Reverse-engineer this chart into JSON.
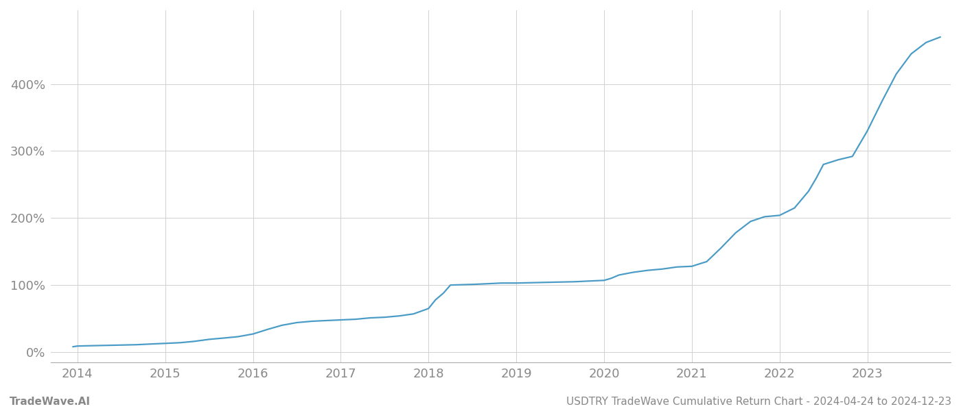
{
  "title": "USDTRY TradeWave Cumulative Return Chart - 2024-04-24 to 2024-12-23",
  "watermark": "TradeWave.AI",
  "line_color": "#4a9cc7",
  "background_color": "#ffffff",
  "grid_color": "#d0d0d0",
  "x_years": [
    2014,
    2015,
    2016,
    2017,
    2018,
    2019,
    2020,
    2021,
    2022,
    2023
  ],
  "x_data": [
    2013.95,
    2014.0,
    2014.15,
    2014.33,
    2014.5,
    2014.67,
    2014.83,
    2015.0,
    2015.17,
    2015.33,
    2015.5,
    2015.67,
    2015.83,
    2016.0,
    2016.17,
    2016.33,
    2016.5,
    2016.67,
    2016.83,
    2017.0,
    2017.17,
    2017.33,
    2017.5,
    2017.67,
    2017.83,
    2018.0,
    2018.08,
    2018.17,
    2018.25,
    2018.5,
    2018.67,
    2018.83,
    2019.0,
    2019.17,
    2019.33,
    2019.5,
    2019.67,
    2019.83,
    2020.0,
    2020.08,
    2020.17,
    2020.33,
    2020.5,
    2020.67,
    2020.83,
    2021.0,
    2021.17,
    2021.33,
    2021.5,
    2021.67,
    2021.83,
    2022.0,
    2022.17,
    2022.33,
    2022.42,
    2022.5,
    2022.67,
    2022.83,
    2023.0,
    2023.17,
    2023.33,
    2023.5,
    2023.67,
    2023.83
  ],
  "y_data": [
    8,
    9,
    9.5,
    10,
    10.5,
    11,
    12,
    13,
    14,
    16,
    19,
    21,
    23,
    27,
    34,
    40,
    44,
    46,
    47,
    48,
    49,
    51,
    52,
    54,
    57,
    65,
    78,
    88,
    100,
    101,
    102,
    103,
    103,
    103.5,
    104,
    104.5,
    105,
    106,
    107,
    110,
    115,
    119,
    122,
    124,
    127,
    128,
    135,
    155,
    178,
    195,
    202,
    204,
    215,
    240,
    260,
    280,
    287,
    292,
    330,
    375,
    415,
    445,
    462,
    470
  ],
  "yticks": [
    0,
    100,
    200,
    300,
    400
  ],
  "ylim": [
    -15,
    510
  ],
  "xlim": [
    2013.7,
    2023.95
  ],
  "tick_label_color": "#888888",
  "tick_fontsize": 13,
  "footer_fontsize": 11,
  "line_width": 1.6
}
